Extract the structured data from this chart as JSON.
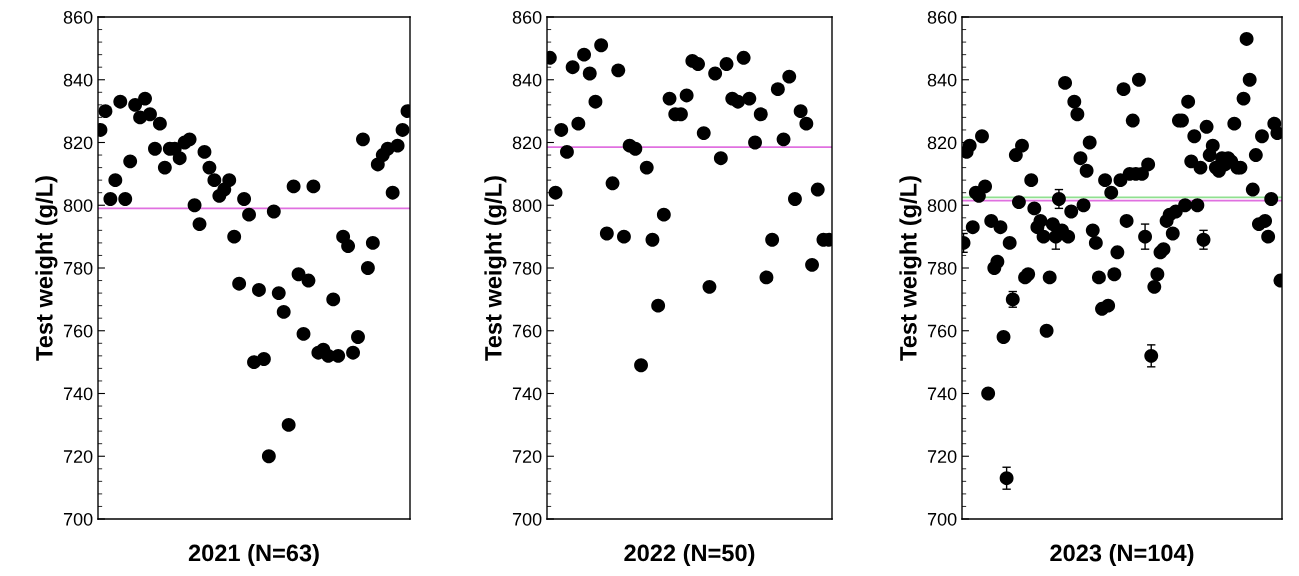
{
  "chart_data": [
    {
      "type": "scatter",
      "xlabel": "2021 (N=63)",
      "ylabel": "Test weight (g/L)",
      "tick_labels": "y",
      "marker": "circle",
      "categories": [
        null,
        null,
        null,
        null,
        null,
        null,
        null,
        null,
        null,
        null,
        null,
        null,
        null,
        null,
        null,
        null,
        null,
        null,
        null,
        null,
        null,
        null,
        null,
        null,
        null,
        null,
        null,
        null,
        null,
        null,
        null,
        null,
        null,
        null,
        null,
        null,
        null,
        null,
        null,
        null,
        null,
        null,
        null,
        null,
        null,
        null,
        null,
        null,
        null,
        null,
        null,
        null,
        null,
        null,
        null,
        null,
        null,
        null,
        null,
        null,
        null,
        null,
        null
      ],
      "series": [
        {
          "color": "#000000",
          "values": [
            824,
            830,
            802,
            808,
            833,
            802,
            814,
            832,
            828,
            834,
            829,
            818,
            826,
            812,
            818,
            818,
            815,
            820,
            821,
            800,
            794,
            817,
            812,
            808,
            803,
            805,
            808,
            790,
            775,
            802,
            797,
            750,
            773,
            751,
            720,
            798,
            772,
            766,
            730,
            806,
            778,
            759,
            776,
            806,
            753,
            754,
            752,
            770,
            752,
            790,
            787,
            753,
            758,
            821,
            780,
            788,
            813,
            816,
            818,
            804,
            819,
            824,
            830
          ]
        }
      ],
      "ylim": [
        700,
        860
      ],
      "yticks": [
        700,
        720,
        740,
        760,
        780,
        800,
        820,
        840,
        860
      ],
      "ref_lines": [
        {
          "axis": "y",
          "value": 799,
          "color": "#e070e0"
        }
      ]
    },
    {
      "type": "scatter",
      "xlabel": "2022 (N=50)",
      "ylabel": "Test weight (g/L)",
      "tick_labels": "y",
      "marker": "circle",
      "categories": [
        null,
        null,
        null,
        null,
        null,
        null,
        null,
        null,
        null,
        null,
        null,
        null,
        null,
        null,
        null,
        null,
        null,
        null,
        null,
        null,
        null,
        null,
        null,
        null,
        null,
        null,
        null,
        null,
        null,
        null,
        null,
        null,
        null,
        null,
        null,
        null,
        null,
        null,
        null,
        null,
        null,
        null,
        null,
        null,
        null,
        null,
        null,
        null,
        null,
        null
      ],
      "series": [
        {
          "color": "#000000",
          "values": [
            847,
            804,
            824,
            817,
            844,
            826,
            848,
            842,
            833,
            851,
            791,
            807,
            843,
            790,
            819,
            818,
            749,
            812,
            789,
            768,
            797,
            834,
            829,
            829,
            835,
            846,
            845,
            823,
            774,
            842,
            815,
            845,
            834,
            833,
            847,
            834,
            820,
            829,
            777,
            789,
            837,
            821,
            841,
            802,
            830,
            826,
            781,
            805,
            789,
            789
          ]
        }
      ],
      "ylim": [
        700,
        860
      ],
      "yticks": [
        700,
        720,
        740,
        760,
        780,
        800,
        820,
        840,
        860
      ],
      "ref_lines": [
        {
          "axis": "y",
          "value": 818.5,
          "color": "#e070e0"
        }
      ]
    },
    {
      "type": "scatter",
      "xlabel": "2023 (N=104)",
      "ylabel": "Test weight (g/L)",
      "tick_labels": "y",
      "marker": "circle",
      "categories": [
        null,
        null,
        null,
        null,
        null,
        null,
        null,
        null,
        null,
        null,
        null,
        null,
        null,
        null,
        null,
        null,
        null,
        null,
        null,
        null,
        null,
        null,
        null,
        null,
        null,
        null,
        null,
        null,
        null,
        null,
        null,
        null,
        null,
        null,
        null,
        null,
        null,
        null,
        null,
        null,
        null,
        null,
        null,
        null,
        null,
        null,
        null,
        null,
        null,
        null,
        null,
        null,
        null,
        null,
        null,
        null,
        null,
        null,
        null,
        null,
        null,
        null,
        null,
        null,
        null,
        null,
        null,
        null,
        null,
        null,
        null,
        null,
        null,
        null,
        null,
        null,
        null,
        null,
        null,
        null,
        null,
        null,
        null,
        null,
        null,
        null,
        null,
        null,
        null,
        null,
        null,
        null,
        null,
        null,
        null,
        null,
        null,
        null,
        null,
        null,
        null,
        null,
        null,
        null
      ],
      "series": [
        {
          "color": "#000000",
          "values": [
            788,
            817,
            819,
            793,
            804,
            803,
            822,
            806,
            740,
            795,
            780,
            782,
            793,
            758,
            713,
            788,
            770,
            816,
            801,
            819,
            777,
            778,
            808,
            799,
            793,
            795,
            790,
            760,
            777,
            794,
            790,
            802,
            792,
            839,
            790,
            798,
            833,
            829,
            815,
            800,
            811,
            820,
            792,
            788,
            777,
            767,
            808,
            768,
            804,
            778,
            785,
            808,
            837,
            795,
            810,
            827,
            810,
            840,
            810,
            790,
            813,
            752,
            774,
            778,
            785,
            786,
            795,
            797,
            791,
            798,
            827,
            827,
            800,
            833,
            814,
            822,
            800,
            812,
            789,
            825,
            816,
            819,
            812,
            811,
            815,
            813,
            815,
            814,
            826,
            812,
            812,
            834,
            853,
            840,
            805,
            816,
            794,
            822,
            795,
            790,
            802,
            826,
            823,
            776
          ],
          "errors": [
            3,
            null,
            null,
            null,
            null,
            null,
            null,
            null,
            null,
            null,
            null,
            null,
            null,
            null,
            3.5,
            null,
            2.5,
            null,
            null,
            null,
            null,
            null,
            null,
            null,
            null,
            null,
            null,
            null,
            null,
            null,
            4,
            3,
            null,
            null,
            null,
            null,
            null,
            null,
            null,
            null,
            null,
            null,
            null,
            null,
            null,
            null,
            null,
            null,
            null,
            null,
            null,
            null,
            null,
            null,
            null,
            null,
            null,
            null,
            null,
            4,
            null,
            3.5,
            null,
            null,
            null,
            null,
            null,
            null,
            null,
            null,
            null,
            null,
            null,
            null,
            null,
            null,
            null,
            null,
            3,
            null,
            null,
            null,
            null,
            null,
            null,
            null,
            null,
            null,
            null,
            null,
            null,
            null,
            null,
            null,
            null,
            null,
            null,
            null,
            null,
            null,
            null,
            null,
            null,
            null
          ]
        }
      ],
      "ylim": [
        700,
        860
      ],
      "yticks": [
        700,
        720,
        740,
        760,
        780,
        800,
        820,
        840,
        860
      ],
      "ref_lines": [
        {
          "axis": "y",
          "value": 802.5,
          "color": "#90e090"
        },
        {
          "axis": "y",
          "value": 801.5,
          "color": "#e070e0"
        }
      ]
    }
  ]
}
